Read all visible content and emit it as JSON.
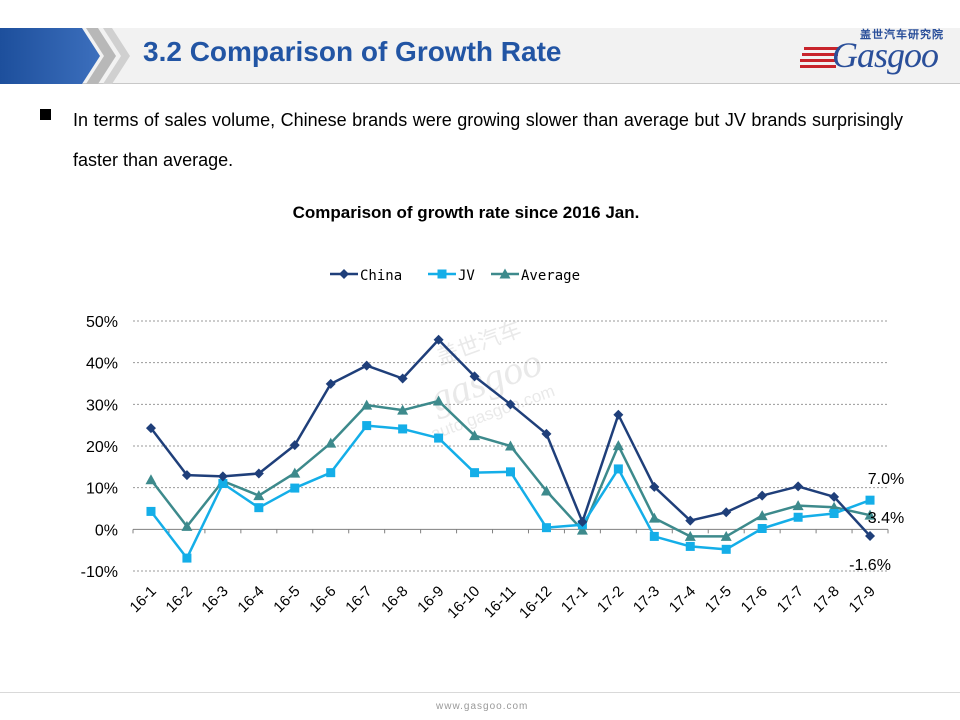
{
  "header": {
    "title": "3.2 Comparison of Growth Rate",
    "logo_cn": "盖世汽车研究院",
    "logo_word": "Gasgoo"
  },
  "bullet": {
    "text": "In terms of sales volume, Chinese brands were growing slower than average but JV brands surprisingly faster than average."
  },
  "watermark": {
    "cn": "盖世汽车",
    "word": "gasgoo",
    "url": "auto.gasgoo.com"
  },
  "footer": {
    "url": "www.gasgoo.com"
  },
  "colors": {
    "title": "#2255a4",
    "china": "#1f3f7a",
    "jv": "#14aee8",
    "average": "#3d8a8c"
  },
  "chart_data": {
    "type": "line",
    "title": "Comparison of growth rate since 2016 Jan.",
    "xlabel": "",
    "ylabel": "",
    "categories": [
      "16-1",
      "16-2",
      "16-3",
      "16-4",
      "16-5",
      "16-6",
      "16-7",
      "16-8",
      "16-9",
      "16-10",
      "16-11",
      "16-12",
      "17-1",
      "17-2",
      "17-3",
      "17-4",
      "17-5",
      "17-6",
      "17-7",
      "17-8",
      "17-9"
    ],
    "ylim": [
      -10,
      50
    ],
    "yticks": [
      "50%",
      "40%",
      "30%",
      "20%",
      "10%",
      "0%",
      "-10%"
    ],
    "ytick_values": [
      50,
      40,
      30,
      20,
      10,
      0,
      -10
    ],
    "grid": true,
    "legend_position": "top",
    "series": [
      {
        "name": "China",
        "marker": "diamond",
        "values": [
          24.3,
          13.0,
          12.7,
          13.4,
          20.2,
          34.9,
          39.3,
          36.2,
          45.5,
          36.7,
          30.0,
          22.9,
          1.8,
          27.5,
          10.2,
          2.1,
          4.1,
          8.1,
          10.3,
          7.8,
          -1.6
        ]
      },
      {
        "name": "JV",
        "marker": "square",
        "values": [
          4.3,
          -6.9,
          11.0,
          5.2,
          9.9,
          13.6,
          24.9,
          24.1,
          21.9,
          13.6,
          13.8,
          0.4,
          1.1,
          14.5,
          -1.7,
          -4.1,
          -4.8,
          0.2,
          2.9,
          3.8,
          7.0
        ]
      },
      {
        "name": "Average",
        "marker": "triangle",
        "values": [
          11.9,
          0.7,
          11.6,
          8.1,
          13.5,
          20.7,
          29.8,
          28.6,
          30.8,
          22.5,
          20.0,
          9.2,
          -0.2,
          20.1,
          2.7,
          -1.7,
          -1.7,
          3.3,
          5.7,
          5.3,
          3.4
        ]
      }
    ],
    "data_labels": [
      {
        "series": "JV",
        "index": 20,
        "text": "7.0%"
      },
      {
        "series": "Average",
        "index": 20,
        "text": "3.4%"
      },
      {
        "series": "China",
        "index": 20,
        "text": "-1.6%"
      }
    ]
  }
}
